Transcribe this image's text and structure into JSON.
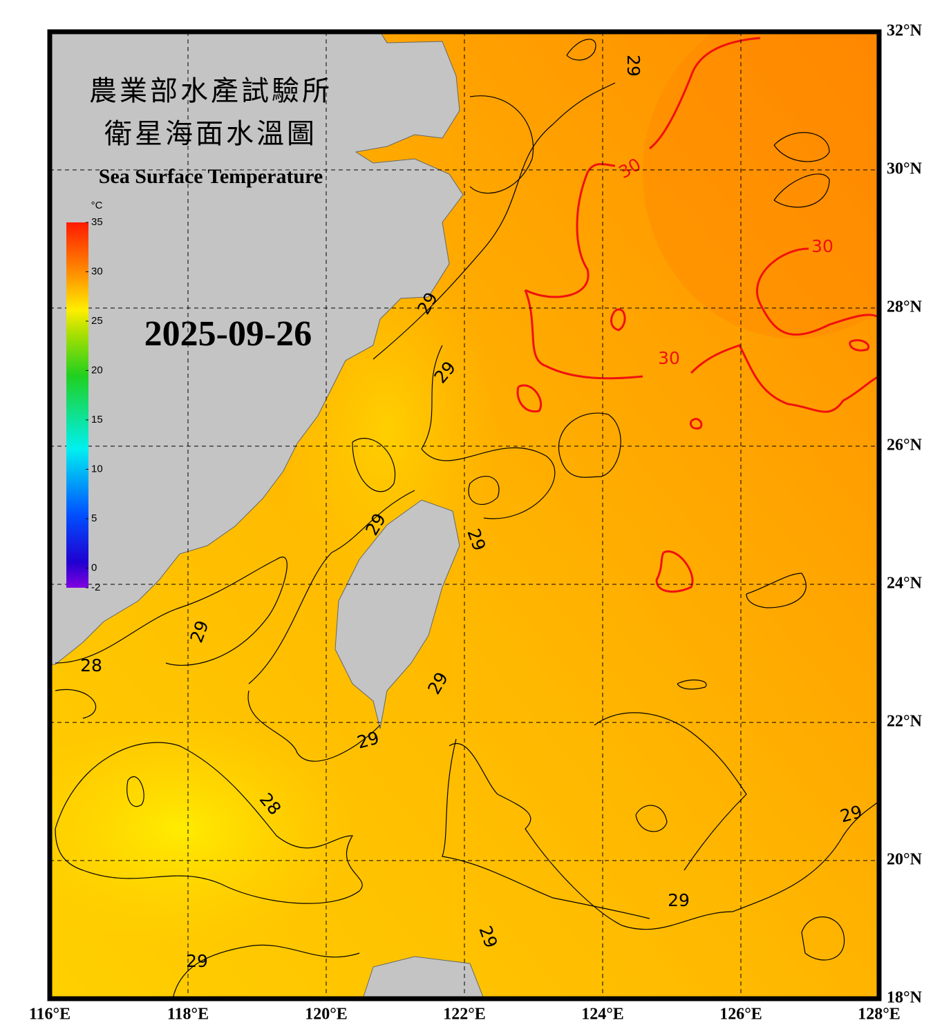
{
  "header": {
    "title_zh_line1": "農業部水產試驗所",
    "title_zh_line2": "衛星海面水溫圖",
    "title_en": "Sea Surface Temperature",
    "date": "2025-09-26"
  },
  "colorbar": {
    "unit": "°C",
    "range": [
      -2,
      35
    ],
    "ticks": [
      -2,
      0,
      5,
      10,
      15,
      20,
      25,
      30,
      35
    ]
  },
  "map": {
    "xlim": [
      116,
      128
    ],
    "ylim": [
      18,
      32
    ],
    "xticks": [
      {
        "value": 116,
        "label": "116°E"
      },
      {
        "value": 118,
        "label": "118°E"
      },
      {
        "value": 120,
        "label": "120°E"
      },
      {
        "value": 122,
        "label": "122°E"
      },
      {
        "value": 124,
        "label": "124°E"
      },
      {
        "value": 126,
        "label": "126°E"
      },
      {
        "value": 128,
        "label": "128°E"
      }
    ],
    "yticks": [
      {
        "value": 18,
        "label": "18°N"
      },
      {
        "value": 20,
        "label": "20°N"
      },
      {
        "value": 22,
        "label": "22°N"
      },
      {
        "value": 24,
        "label": "24°N"
      },
      {
        "value": 26,
        "label": "26°N"
      },
      {
        "value": 28,
        "label": "28°N"
      },
      {
        "value": 30,
        "label": "30°N"
      },
      {
        "value": 32,
        "label": "32°N"
      }
    ],
    "grid": true,
    "contour_labels": [
      "29",
      "30",
      "30",
      "30",
      "29",
      "29",
      "29",
      "29",
      "29",
      "28",
      "29",
      "29",
      "28",
      "29",
      "29",
      "29",
      "29"
    ]
  }
}
